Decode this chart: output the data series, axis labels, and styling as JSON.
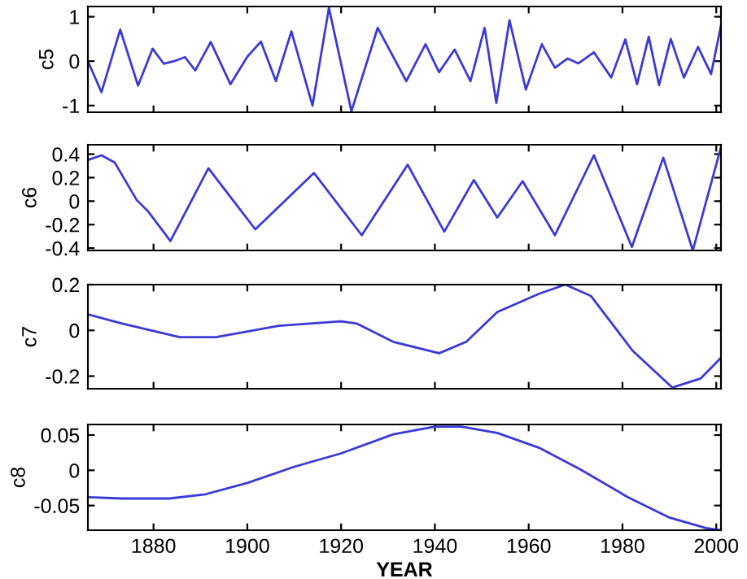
{
  "chart_data": [
    {
      "type": "line",
      "ylabel": "c5",
      "xlim": [
        1866,
        2001
      ],
      "xticks": [
        1880,
        1900,
        1920,
        1940,
        1960,
        1980,
        2000
      ],
      "ylim": [
        -1.15,
        1.23
      ],
      "yticks": [
        -1,
        0,
        1
      ],
      "tick_labels": "y",
      "grid": false,
      "legend": false,
      "series": [
        {
          "color": "#3a3ad6",
          "x": [
            1866,
            1868.9,
            1872.9,
            1876.7,
            1879.8,
            1882.2,
            1884.4,
            1886.7,
            1888.9,
            1892.2,
            1896.4,
            1900,
            1902.9,
            1906.1,
            1909.4,
            1913.9,
            1917.4,
            1922.2,
            1927.8,
            1933.9,
            1938,
            1940.9,
            1944.2,
            1947.6,
            1950.6,
            1953.1,
            1955.9,
            1959.4,
            1962.8,
            1965.6,
            1968.3,
            1970.6,
            1973.9,
            1977.6,
            1980.6,
            1983.1,
            1985.6,
            1987.8,
            1990.3,
            1993.1,
            1996.1,
            1998.9,
            2001
          ],
          "values": [
            0,
            -0.7,
            0.71,
            -0.55,
            0.28,
            -0.06,
            0,
            0.09,
            -0.21,
            0.43,
            -0.52,
            0.1,
            0.44,
            -0.45,
            0.67,
            -1.0,
            1.2,
            -1.13,
            0.75,
            -0.45,
            0.38,
            -0.25,
            0.26,
            -0.45,
            0.75,
            -0.94,
            0.92,
            -0.64,
            0.38,
            -0.15,
            0.06,
            -0.05,
            0.2,
            -0.37,
            0.49,
            -0.52,
            0.55,
            -0.54,
            0.5,
            -0.37,
            0.32,
            -0.29,
            0.8
          ]
        }
      ]
    },
    {
      "type": "line",
      "ylabel": "c6",
      "xlim": [
        1866,
        2001
      ],
      "xticks": [
        1880,
        1900,
        1920,
        1940,
        1960,
        1980,
        2000
      ],
      "ylim": [
        -0.42,
        0.48
      ],
      "yticks": [
        -0.4,
        -0.2,
        0,
        0.2,
        0.4
      ],
      "tick_labels": "y",
      "grid": false,
      "legend": false,
      "series": [
        {
          "color": "#3a3ad6",
          "x": [
            1866,
            1868.9,
            1871.7,
            1876.4,
            1878.9,
            1883.6,
            1891.7,
            1901.7,
            1914.2,
            1924.4,
            1934.2,
            1942,
            1948.3,
            1953.3,
            1958.7,
            1965.6,
            1973.9,
            1982,
            1988.7,
            1995,
            2001
          ],
          "values": [
            0.35,
            0.39,
            0.33,
            0.01,
            -0.09,
            -0.34,
            0.28,
            -0.24,
            0.24,
            -0.29,
            0.31,
            -0.26,
            0.18,
            -0.14,
            0.17,
            -0.29,
            0.39,
            -0.39,
            0.37,
            -0.42,
            0.46
          ]
        }
      ]
    },
    {
      "type": "line",
      "ylabel": "c7",
      "xlim": [
        1866,
        2001
      ],
      "xticks": [
        1880,
        1900,
        1920,
        1940,
        1960,
        1980,
        2000
      ],
      "ylim": [
        -0.255,
        0.2
      ],
      "yticks": [
        -0.2,
        0,
        0.2
      ],
      "tick_labels": "y",
      "grid": false,
      "legend": false,
      "series": [
        {
          "color": "#3a3ad6",
          "x": [
            1866,
            1873.3,
            1885.6,
            1893.3,
            1906.7,
            1920,
            1923.3,
            1931.1,
            1940.9,
            1946.7,
            1953.3,
            1962.2,
            1967.8,
            1973.3,
            1982.2,
            1990.6,
            1996.7,
            2001
          ],
          "values": [
            0.07,
            0.03,
            -0.03,
            -0.03,
            0.02,
            0.04,
            0.03,
            -0.05,
            -0.1,
            -0.05,
            0.08,
            0.16,
            0.2,
            0.15,
            -0.09,
            -0.25,
            -0.21,
            -0.12
          ]
        }
      ]
    },
    {
      "type": "line",
      "ylabel": "c8",
      "xlabel": "YEAR",
      "xlim": [
        1866,
        2001
      ],
      "xticks": [
        1880,
        1900,
        1920,
        1940,
        1960,
        1980,
        2000
      ],
      "ylim": [
        -0.085,
        0.065
      ],
      "yticks": [
        -0.05,
        0,
        0.05
      ],
      "grid": false,
      "legend": false,
      "series": [
        {
          "color": "#3a3ad6",
          "x": [
            1866,
            1873.3,
            1883.3,
            1891.1,
            1900,
            1910,
            1920,
            1931.1,
            1940,
            1945.6,
            1953.3,
            1962.2,
            1971.1,
            1981.1,
            1990,
            1997.8,
            2001
          ],
          "values": [
            -0.038,
            -0.04,
            -0.04,
            -0.034,
            -0.018,
            0.005,
            0.024,
            0.051,
            0.062,
            0.062,
            0.053,
            0.032,
            0.001,
            -0.038,
            -0.067,
            -0.082,
            -0.085
          ]
        }
      ]
    }
  ]
}
